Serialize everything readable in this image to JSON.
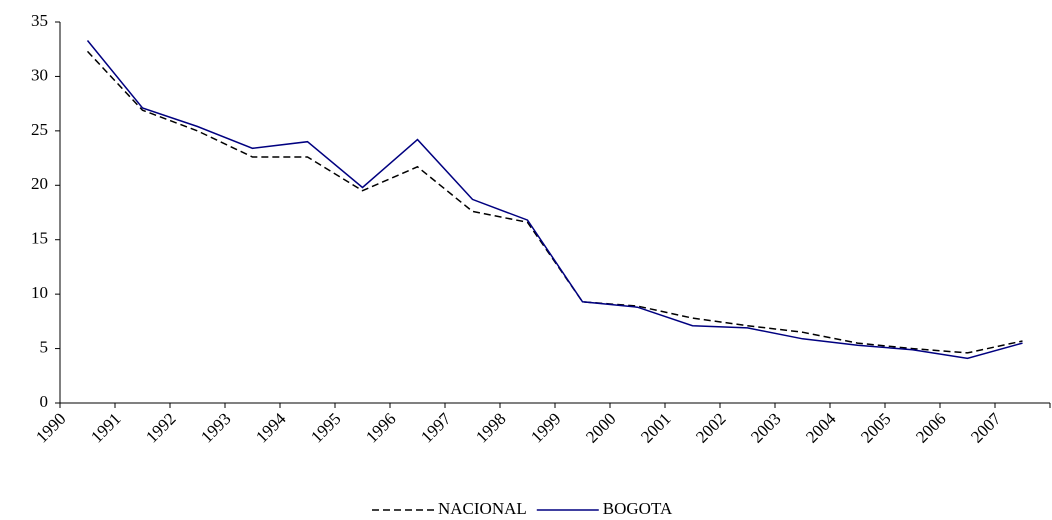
{
  "chart_data": {
    "type": "line",
    "categories": [
      "1990",
      "1991",
      "1992",
      "1993",
      "1994",
      "1995",
      "1996",
      "1997",
      "1998",
      "1999",
      "2000",
      "2001",
      "2002",
      "2003",
      "2004",
      "2005",
      "2006",
      "2007"
    ],
    "series": [
      {
        "name": "NACIONAL",
        "color": "#000000",
        "dash": true,
        "values": [
          32.3,
          26.9,
          25.0,
          22.6,
          22.6,
          19.5,
          21.7,
          17.6,
          16.6,
          9.3,
          8.9,
          7.8,
          7.1,
          6.5,
          5.5,
          5.0,
          4.6,
          5.7
        ]
      },
      {
        "name": "BOGOTA",
        "color": "#000080",
        "dash": false,
        "values": [
          33.3,
          27.1,
          25.4,
          23.4,
          24.0,
          19.8,
          24.2,
          18.7,
          16.8,
          9.3,
          8.8,
          7.1,
          6.9,
          5.9,
          5.3,
          4.9,
          4.1,
          5.5
        ]
      }
    ],
    "ylim": [
      0,
      35
    ],
    "yticks": [
      0,
      5,
      10,
      15,
      20,
      25,
      30,
      35
    ],
    "legend": "bottom"
  }
}
